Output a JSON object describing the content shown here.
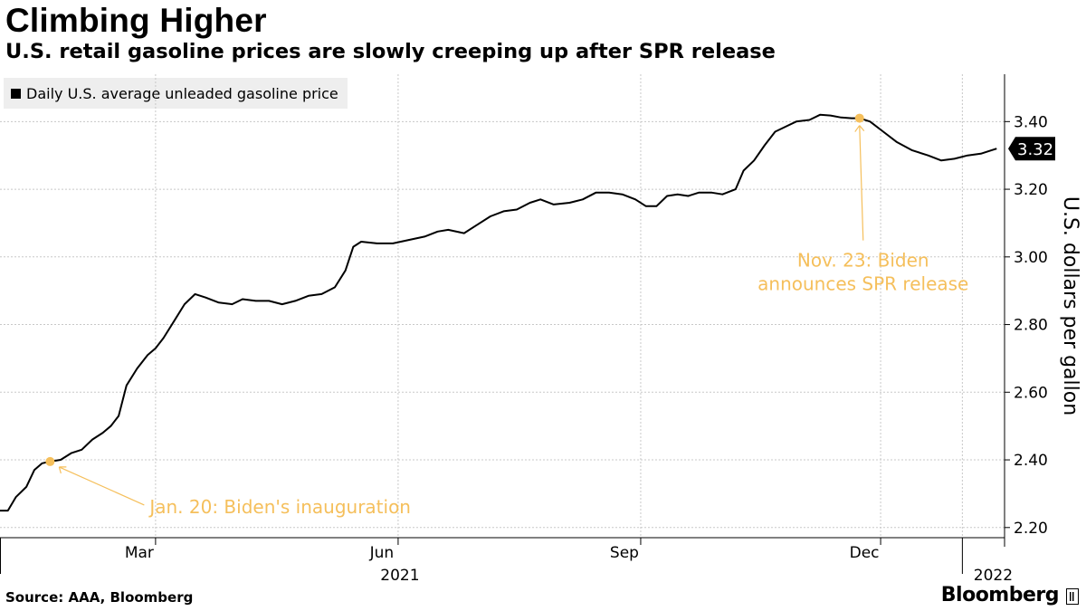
{
  "header": {
    "title": "Climbing Higher",
    "subtitle": "U.S. retail gasoline prices are slowly creeping up after SPR release"
  },
  "footer": {
    "source": "Source: AAA, Bloomberg",
    "brand": "Bloomberg"
  },
  "colors": {
    "line": "#000000",
    "annotation": "#f5bf5b",
    "grid": "#c8c8c8",
    "legend_bg": "#eeeeee",
    "last_value_tag": "#000000"
  },
  "icons": [
    "bloomberg-logo-icon",
    "legend-swatch-icon"
  ],
  "chart_data": {
    "type": "line",
    "title": "Climbing Higher",
    "subtitle": "U.S. retail gasoline prices are slowly creeping up after SPR release",
    "ylabel": "U.S. dollars per gallon",
    "xlabel": "",
    "ylim": [
      2.17,
      3.54
    ],
    "xlim": [
      "2021-01-01",
      "2022-01-17"
    ],
    "y_ticks": [
      2.2,
      2.4,
      2.6,
      2.8,
      3.0,
      3.2,
      3.4
    ],
    "y_tick_labels": [
      "2.20",
      "2.40",
      "2.60",
      "2.80",
      "3.00",
      "3.20",
      "3.40"
    ],
    "x_ticks": [
      {
        "date": "2021-03-01",
        "label": "Mar"
      },
      {
        "date": "2021-06-01",
        "label": "Jun"
      },
      {
        "date": "2021-09-01",
        "label": "Sep"
      },
      {
        "date": "2021-12-01",
        "label": "Dec"
      }
    ],
    "year_labels": [
      {
        "date": "2021-06-01",
        "label": "2021"
      },
      {
        "date": "2022-01-01",
        "label": "2022"
      }
    ],
    "grid": true,
    "legend_position": "top-left",
    "y_axis_position": "right",
    "last_value_label": "3.32",
    "series": [
      {
        "name": "Daily U.S. average unleaded gasoline price",
        "points": [
          [
            "2021-01-01",
            2.25
          ],
          [
            "2021-01-04",
            2.25
          ],
          [
            "2021-01-07",
            2.29
          ],
          [
            "2021-01-11",
            2.32
          ],
          [
            "2021-01-14",
            2.37
          ],
          [
            "2021-01-17",
            2.39
          ],
          [
            "2021-01-20",
            2.395
          ],
          [
            "2021-01-24",
            2.4
          ],
          [
            "2021-01-28",
            2.42
          ],
          [
            "2021-02-01",
            2.43
          ],
          [
            "2021-02-05",
            2.46
          ],
          [
            "2021-02-09",
            2.48
          ],
          [
            "2021-02-12",
            2.5
          ],
          [
            "2021-02-15",
            2.53
          ],
          [
            "2021-02-18",
            2.62
          ],
          [
            "2021-02-22",
            2.67
          ],
          [
            "2021-02-26",
            2.71
          ],
          [
            "2021-03-01",
            2.73
          ],
          [
            "2021-03-04",
            2.76
          ],
          [
            "2021-03-08",
            2.81
          ],
          [
            "2021-03-12",
            2.86
          ],
          [
            "2021-03-16",
            2.89
          ],
          [
            "2021-03-20",
            2.88
          ],
          [
            "2021-03-25",
            2.865
          ],
          [
            "2021-03-30",
            2.86
          ],
          [
            "2021-04-03",
            2.875
          ],
          [
            "2021-04-08",
            2.87
          ],
          [
            "2021-04-13",
            2.87
          ],
          [
            "2021-04-18",
            2.86
          ],
          [
            "2021-04-23",
            2.87
          ],
          [
            "2021-04-28",
            2.885
          ],
          [
            "2021-05-03",
            2.89
          ],
          [
            "2021-05-08",
            2.91
          ],
          [
            "2021-05-12",
            2.96
          ],
          [
            "2021-05-15",
            3.03
          ],
          [
            "2021-05-18",
            3.045
          ],
          [
            "2021-05-24",
            3.04
          ],
          [
            "2021-05-30",
            3.04
          ],
          [
            "2021-06-05",
            3.05
          ],
          [
            "2021-06-11",
            3.06
          ],
          [
            "2021-06-16",
            3.075
          ],
          [
            "2021-06-20",
            3.08
          ],
          [
            "2021-06-26",
            3.07
          ],
          [
            "2021-07-01",
            3.095
          ],
          [
            "2021-07-06",
            3.12
          ],
          [
            "2021-07-11",
            3.135
          ],
          [
            "2021-07-16",
            3.14
          ],
          [
            "2021-07-21",
            3.16
          ],
          [
            "2021-07-25",
            3.17
          ],
          [
            "2021-07-30",
            3.155
          ],
          [
            "2021-08-05",
            3.16
          ],
          [
            "2021-08-10",
            3.17
          ],
          [
            "2021-08-15",
            3.19
          ],
          [
            "2021-08-20",
            3.19
          ],
          [
            "2021-08-25",
            3.185
          ],
          [
            "2021-08-30",
            3.17
          ],
          [
            "2021-09-03",
            3.15
          ],
          [
            "2021-09-07",
            3.15
          ],
          [
            "2021-09-11",
            3.18
          ],
          [
            "2021-09-15",
            3.185
          ],
          [
            "2021-09-19",
            3.18
          ],
          [
            "2021-09-23",
            3.19
          ],
          [
            "2021-09-28",
            3.19
          ],
          [
            "2021-10-02",
            3.185
          ],
          [
            "2021-10-07",
            3.2
          ],
          [
            "2021-10-10",
            3.255
          ],
          [
            "2021-10-14",
            3.285
          ],
          [
            "2021-10-18",
            3.33
          ],
          [
            "2021-10-22",
            3.37
          ],
          [
            "2021-10-26",
            3.385
          ],
          [
            "2021-10-30",
            3.4
          ],
          [
            "2021-11-04",
            3.405
          ],
          [
            "2021-11-08",
            3.42
          ],
          [
            "2021-11-12",
            3.418
          ],
          [
            "2021-11-16",
            3.412
          ],
          [
            "2021-11-20",
            3.41
          ],
          [
            "2021-11-23",
            3.41
          ],
          [
            "2021-11-27",
            3.4
          ],
          [
            "2021-12-02",
            3.37
          ],
          [
            "2021-12-07",
            3.34
          ],
          [
            "2021-12-13",
            3.315
          ],
          [
            "2021-12-19",
            3.3
          ],
          [
            "2021-12-24",
            3.285
          ],
          [
            "2021-12-29",
            3.29
          ],
          [
            "2022-01-03",
            3.3
          ],
          [
            "2022-01-08",
            3.305
          ],
          [
            "2022-01-12",
            3.315
          ],
          [
            "2022-01-14",
            3.32
          ]
        ]
      }
    ],
    "annotations": [
      {
        "date": "2021-01-20",
        "value": 2.395,
        "text": "Jan. 20: Biden's inauguration",
        "lines": [
          "Jan. 20: Biden's inauguration"
        ]
      },
      {
        "date": "2021-11-23",
        "value": 3.41,
        "text": "Nov. 23: Biden announces SPR release",
        "lines": [
          "Nov. 23: Biden",
          "announces SPR release"
        ]
      }
    ]
  }
}
